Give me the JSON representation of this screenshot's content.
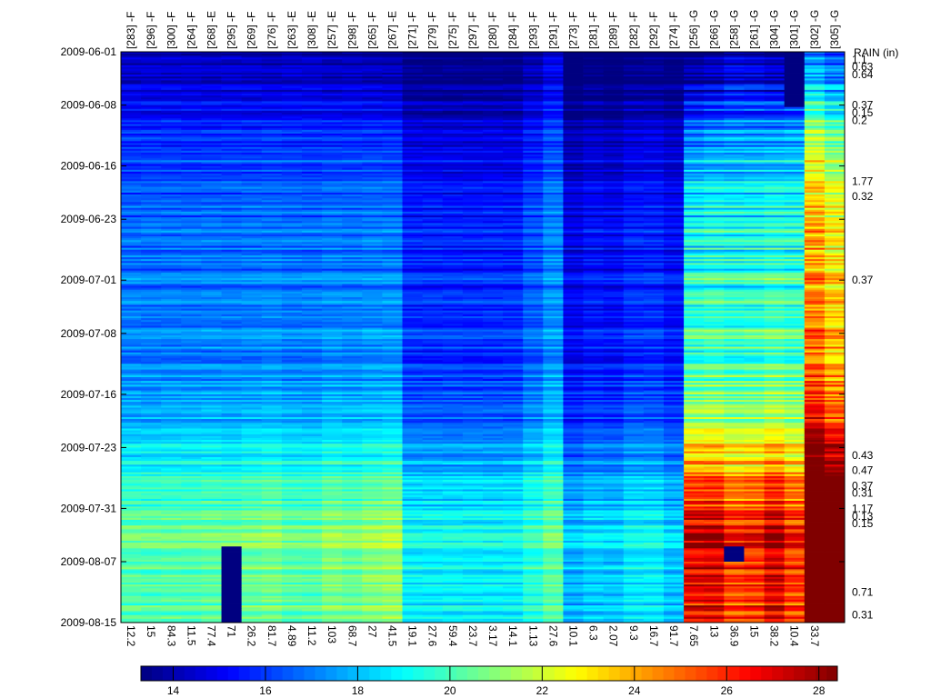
{
  "chart_data": {
    "type": "heatmap",
    "title": "",
    "columns": [
      {
        "label": "[283] -F",
        "bottom": "12.2",
        "group": "F",
        "base": 15.6,
        "offset": -0.2
      },
      {
        "label": "[296] -F",
        "bottom": "15",
        "group": "F",
        "base": 15.6,
        "offset": -0.3
      },
      {
        "label": "[300] -F",
        "bottom": "84.3",
        "group": "F",
        "base": 15.6,
        "offset": -0.1
      },
      {
        "label": "[264] -F",
        "bottom": "11.5",
        "group": "F",
        "base": 15.6,
        "offset": -0.2
      },
      {
        "label": "[268] -E",
        "bottom": "77.4",
        "group": "E",
        "base": 15.6,
        "offset": 0.1
      },
      {
        "label": "[295] -F",
        "bottom": "71",
        "group": "F",
        "base": 15.6,
        "offset": 0.0
      },
      {
        "label": "[269] -F",
        "bottom": "26.2",
        "group": "F",
        "base": 15.6,
        "offset": 0.2
      },
      {
        "label": "[276] -F",
        "bottom": "81.7",
        "group": "F",
        "base": 15.6,
        "offset": 0.4
      },
      {
        "label": "[263] -E",
        "bottom": "4.89",
        "group": "E",
        "base": 15.6,
        "offset": 0.0
      },
      {
        "label": "[308] -E",
        "bottom": "11.2",
        "group": "E",
        "base": 15.6,
        "offset": -0.1
      },
      {
        "label": "[257] -E",
        "bottom": "103",
        "group": "E",
        "base": 15.6,
        "offset": 0.5
      },
      {
        "label": "[298] -F",
        "bottom": "68.7",
        "group": "F",
        "base": 15.6,
        "offset": 0.3
      },
      {
        "label": "[265] -F",
        "bottom": "27",
        "group": "F",
        "base": 15.6,
        "offset": 0.6
      },
      {
        "label": "[267] -E",
        "bottom": "41.5",
        "group": "E",
        "base": 15.6,
        "offset": 0.8
      },
      {
        "label": "[271] -F",
        "bottom": "19.1",
        "group": "F",
        "base": 14.5,
        "offset": -1.4
      },
      {
        "label": "[279] -F",
        "bottom": "27.6",
        "group": "F",
        "base": 14.5,
        "offset": -1.3
      },
      {
        "label": "[275] -F",
        "bottom": "59.4",
        "group": "F",
        "base": 14.5,
        "offset": -1.2
      },
      {
        "label": "[297] -F",
        "bottom": "23.7",
        "group": "F",
        "base": 14.5,
        "offset": -1.2
      },
      {
        "label": "[280] -F",
        "bottom": "3.17",
        "group": "F",
        "base": 14.5,
        "offset": -1.3
      },
      {
        "label": "[284] -F",
        "bottom": "14.1",
        "group": "F",
        "base": 14.5,
        "offset": -1.2
      },
      {
        "label": "[293] -F",
        "bottom": "1.13",
        "group": "F",
        "base": 15.2,
        "offset": -1.1
      },
      {
        "label": "[291] -F",
        "bottom": "27.6",
        "group": "F",
        "base": 16.0,
        "offset": -1.3
      },
      {
        "label": "[273] -F",
        "bottom": "10.1",
        "group": "F",
        "base": 13.8,
        "offset": -2.4
      },
      {
        "label": "[281] -F",
        "bottom": "6.3",
        "group": "F",
        "base": 14.2,
        "offset": -2.7
      },
      {
        "label": "[289] -F",
        "bottom": "2.07",
        "group": "F",
        "base": 14.0,
        "offset": -2.1
      },
      {
        "label": "[282] -F",
        "bottom": "9.3",
        "group": "F",
        "base": 14.5,
        "offset": -1.9
      },
      {
        "label": "[292] -F",
        "bottom": "16.7",
        "group": "F",
        "base": 14.5,
        "offset": -1.7
      },
      {
        "label": "[274] -F",
        "bottom": "91.7",
        "group": "F",
        "base": 14.2,
        "offset": -3.2
      },
      {
        "label": "[256] -G",
        "bottom": "7.65",
        "group": "G",
        "base": 16.5,
        "offset": 4.8
      },
      {
        "label": "[266] -G",
        "bottom": "13",
        "group": "G",
        "base": 16.8,
        "offset": 4.6
      },
      {
        "label": "[258] -G",
        "bottom": "36.9",
        "group": "G",
        "base": 17.0,
        "offset": 3.4
      },
      {
        "label": "[261] -G",
        "bottom": "15",
        "group": "G",
        "base": 17.0,
        "offset": 3.6
      },
      {
        "label": "[304] -G",
        "bottom": "38.2",
        "group": "G",
        "base": 17.0,
        "offset": 4.6
      },
      {
        "label": "[301] -G",
        "bottom": "10.4",
        "group": "G",
        "base": 17.2,
        "offset": 3.3
      },
      {
        "label": "[302] -G",
        "bottom": "33.7",
        "group": "G",
        "base": 21.0,
        "offset": 6.3
      },
      {
        "label": "[305] -G",
        "bottom": "",
        "group": "G",
        "base": 20.0,
        "offset": 5.7
      }
    ],
    "y_ticks": [
      "2009-06-01",
      "2009-06-08",
      "2009-06-16",
      "2009-06-23",
      "2009-07-01",
      "2009-07-08",
      "2009-07-16",
      "2009-07-23",
      "2009-07-31",
      "2009-08-07",
      "2009-08-15"
    ],
    "rain_title": "RAIN (in)",
    "rain": [
      {
        "date": "2009-06-02",
        "value": "1.1"
      },
      {
        "date": "2009-06-03",
        "value": "0.63"
      },
      {
        "date": "2009-06-04",
        "value": "0.64"
      },
      {
        "date": "2009-06-08",
        "value": "0.37"
      },
      {
        "date": "2009-06-09",
        "value": "0.15"
      },
      {
        "date": "2009-06-10",
        "value": "0.2"
      },
      {
        "date": "2009-06-18",
        "value": "1.77"
      },
      {
        "date": "2009-06-20",
        "value": "0.32"
      },
      {
        "date": "2009-07-01",
        "value": "0.37"
      },
      {
        "date": "2009-07-24",
        "value": "0.43"
      },
      {
        "date": "2009-07-26",
        "value": "0.47"
      },
      {
        "date": "2009-07-28",
        "value": "0.37"
      },
      {
        "date": "2009-07-29",
        "value": "0.31"
      },
      {
        "date": "2009-07-31",
        "value": "1.17"
      },
      {
        "date": "2009-08-01",
        "value": "0.13"
      },
      {
        "date": "2009-08-02",
        "value": "0.15"
      },
      {
        "date": "2009-08-11",
        "value": "0.71"
      },
      {
        "date": "2009-08-14",
        "value": "0.31"
      }
    ],
    "colorbar": {
      "min": 13.3,
      "max": 28.4,
      "ticks": [
        "14",
        "16",
        "18",
        "20",
        "22",
        "24",
        "26",
        "28"
      ],
      "tick_values": [
        14,
        16,
        18,
        20,
        22,
        24,
        26,
        28
      ],
      "colormap": "jet"
    },
    "missing_blocks": [
      {
        "column": "[301] -G",
        "from": "2009-06-01",
        "to": "2009-06-08"
      },
      {
        "column": "[295] -F",
        "from": "2009-08-05",
        "to": "2009-08-15"
      },
      {
        "column": "[258] -G",
        "from": "2009-08-05",
        "to": "2009-08-07"
      }
    ]
  }
}
